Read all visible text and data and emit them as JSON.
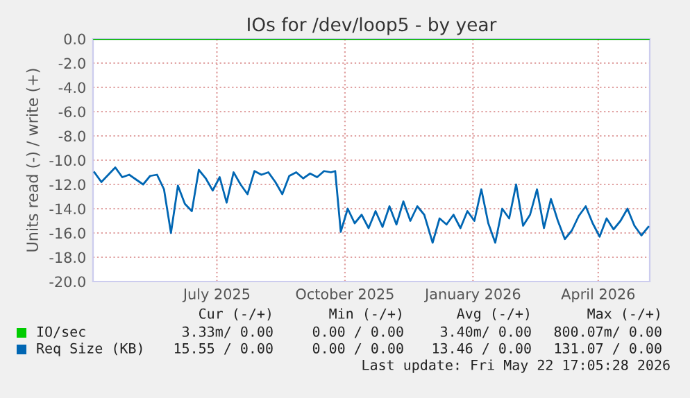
{
  "chart_data": {
    "type": "line",
    "title": "IOs for /dev/loop5 - by year",
    "ylabel": "Units read (-) / write (+)",
    "ylim": [
      -20,
      0
    ],
    "yticks": [
      {
        "value": -20,
        "label": "-20.0"
      },
      {
        "value": -18,
        "label": "-18.0"
      },
      {
        "value": -16,
        "label": "-16.0"
      },
      {
        "value": -14,
        "label": "-14.0"
      },
      {
        "value": -12,
        "label": "-12.0"
      },
      {
        "value": -10,
        "label": "-10.0"
      },
      {
        "value": -8,
        "label": "-8.0"
      },
      {
        "value": -6,
        "label": "-6.0"
      },
      {
        "value": -4,
        "label": "-4.0"
      },
      {
        "value": -2,
        "label": "-2.0"
      },
      {
        "value": 0,
        "label": "0.0"
      }
    ],
    "xlim": [
      "2025-04-17",
      "2026-05-22"
    ],
    "xticks": [
      {
        "value": "2025-07-15",
        "label": "July 2025"
      },
      {
        "value": "2025-10-15",
        "label": "October 2025"
      },
      {
        "value": "2026-01-15",
        "label": "January 2026"
      },
      {
        "value": "2026-04-15",
        "label": "April 2026"
      }
    ],
    "grid": true,
    "legend": "bottom",
    "marker": "none",
    "line_style": "solid",
    "ref_lines": [
      {
        "axis": "y",
        "value": 0,
        "color": "#000000"
      }
    ],
    "series": [
      {
        "name": "IO/sec",
        "color": "#00cc00",
        "x": [
          "2025-04-17",
          "2026-05-22"
        ],
        "values": [
          0,
          0
        ]
      },
      {
        "name": "Req Size (KB)",
        "color": "#0066b3",
        "x": [
          "2025-04-18",
          "2025-04-23",
          "2025-04-28",
          "2025-05-03",
          "2025-05-08",
          "2025-05-13",
          "2025-05-18",
          "2025-05-23",
          "2025-05-28",
          "2025-06-02",
          "2025-06-07",
          "2025-06-12",
          "2025-06-17",
          "2025-06-22",
          "2025-06-27",
          "2025-07-02",
          "2025-07-07",
          "2025-07-12",
          "2025-07-17",
          "2025-07-22",
          "2025-07-27",
          "2025-08-01",
          "2025-08-06",
          "2025-08-11",
          "2025-08-16",
          "2025-08-21",
          "2025-08-26",
          "2025-08-31",
          "2025-09-05",
          "2025-09-10",
          "2025-09-15",
          "2025-09-20",
          "2025-09-25",
          "2025-09-30",
          "2025-10-05",
          "2025-10-08",
          "2025-10-12",
          "2025-10-17",
          "2025-10-22",
          "2025-10-27",
          "2025-11-01",
          "2025-11-06",
          "2025-11-11",
          "2025-11-16",
          "2025-11-21",
          "2025-11-26",
          "2025-12-01",
          "2025-12-06",
          "2025-12-11",
          "2025-12-17",
          "2025-12-22",
          "2025-12-27",
          "2026-01-01",
          "2026-01-06",
          "2026-01-11",
          "2026-01-16",
          "2026-01-21",
          "2026-01-26",
          "2026-01-31",
          "2026-02-05",
          "2026-02-10",
          "2026-02-15",
          "2026-02-20",
          "2026-02-25",
          "2026-03-02",
          "2026-03-07",
          "2026-03-12",
          "2026-03-17",
          "2026-03-22",
          "2026-03-27",
          "2026-04-01",
          "2026-04-06",
          "2026-04-11",
          "2026-04-16",
          "2026-04-21",
          "2026-04-26",
          "2026-05-01",
          "2026-05-06",
          "2026-05-11",
          "2026-05-16",
          "2026-05-21"
        ],
        "values": [
          -11.0,
          -11.8,
          -11.2,
          -10.6,
          -11.4,
          -11.2,
          -11.6,
          -12.0,
          -11.3,
          -11.2,
          -12.4,
          -16.0,
          -12.1,
          -13.6,
          -14.2,
          -10.8,
          -11.5,
          -12.5,
          -11.4,
          -13.5,
          -11.0,
          -12.0,
          -12.8,
          -10.9,
          -11.2,
          -11.0,
          -11.8,
          -12.8,
          -11.3,
          -11.0,
          -11.5,
          -11.1,
          -11.4,
          -10.9,
          -11.0,
          -10.9,
          -15.9,
          -14.0,
          -15.2,
          -14.5,
          -15.6,
          -14.2,
          -15.5,
          -13.8,
          -15.3,
          -13.4,
          -15.0,
          -13.8,
          -14.5,
          -16.8,
          -14.8,
          -15.3,
          -14.5,
          -15.6,
          -14.2,
          -15.0,
          -12.4,
          -15.2,
          -16.8,
          -14.0,
          -14.8,
          -12.0,
          -15.4,
          -14.5,
          -12.4,
          -15.6,
          -13.2,
          -15.0,
          -16.5,
          -15.8,
          -14.6,
          -13.8,
          -15.2,
          -16.3,
          -14.8,
          -15.7,
          -15.0,
          -14.0,
          -15.4,
          -16.2,
          -15.5
        ]
      }
    ],
    "annotations": [
      "Cur (-/+)",
      "Min (-/+)",
      "Avg (-/+)",
      "Max (-/+)",
      "3.33m/ 0.00",
      "0.00 / 0.00",
      "3.40m/ 0.00",
      "800.07m/ 0.00",
      "15.55 / 0.00",
      "0.00 / 0.00",
      "13.46 / 0.00",
      "131.07 / 0.00",
      "Last update: Fri May 22 17:05:28 2026"
    ]
  }
}
